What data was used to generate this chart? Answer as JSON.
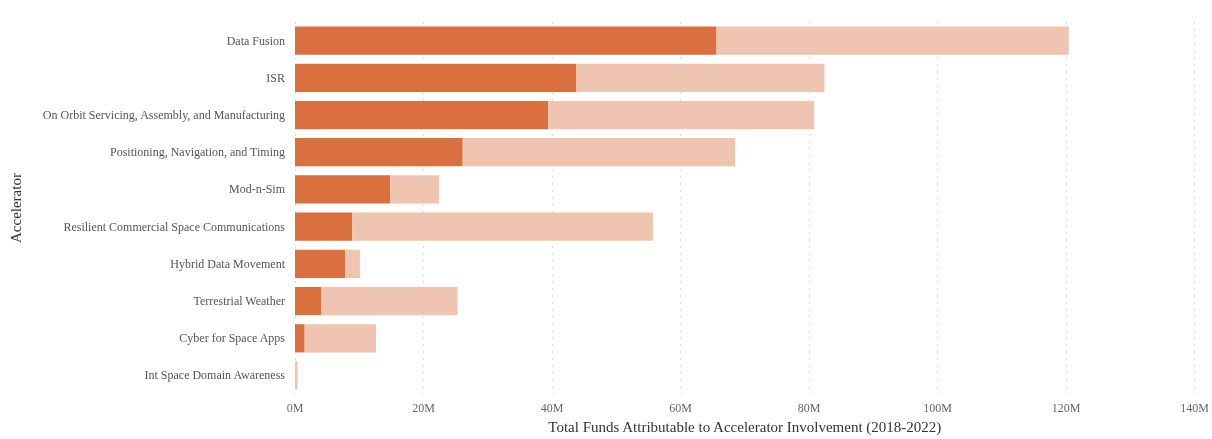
{
  "chart_data": {
    "type": "bar",
    "orientation": "horizontal",
    "stacked": true,
    "xlabel": "Total Funds Attributable to Accelerator Involvement (2018-2022)",
    "ylabel": "Accelerator",
    "categories": [
      "Data Fusion",
      "ISR",
      "On Orbit Servicing, Assembly, and Manufacturing",
      "Positioning, Navigation, and Timing",
      "Mod-n-Sim",
      "Resilient Commercial Space Communications",
      "Hybrid Data Movement",
      "Terrestrial Weather",
      "Cyber for Space Apps",
      "Int Space Domain Awareness"
    ],
    "series": [
      {
        "color": "#d9703e",
        "values": [
          65.6,
          43.8,
          39.4,
          26.1,
          14.8,
          8.9,
          7.8,
          4.1,
          1.5,
          0
        ]
      },
      {
        "color": "#efc4b0",
        "values": [
          54.8,
          38.6,
          41.4,
          42.4,
          7.6,
          46.8,
          2.3,
          21.2,
          11.1,
          0.4
        ]
      }
    ],
    "xlim": [
      0,
      140
    ],
    "xticks": [
      {
        "value": 0,
        "label": "0M"
      },
      {
        "value": 20,
        "label": "20M"
      },
      {
        "value": 40,
        "label": "40M"
      },
      {
        "value": 60,
        "label": "60M"
      },
      {
        "value": 80,
        "label": "80M"
      },
      {
        "value": 100,
        "label": "100M"
      },
      {
        "value": 120,
        "label": "120M"
      },
      {
        "value": 140,
        "label": "140M"
      }
    ],
    "grid": "x"
  }
}
